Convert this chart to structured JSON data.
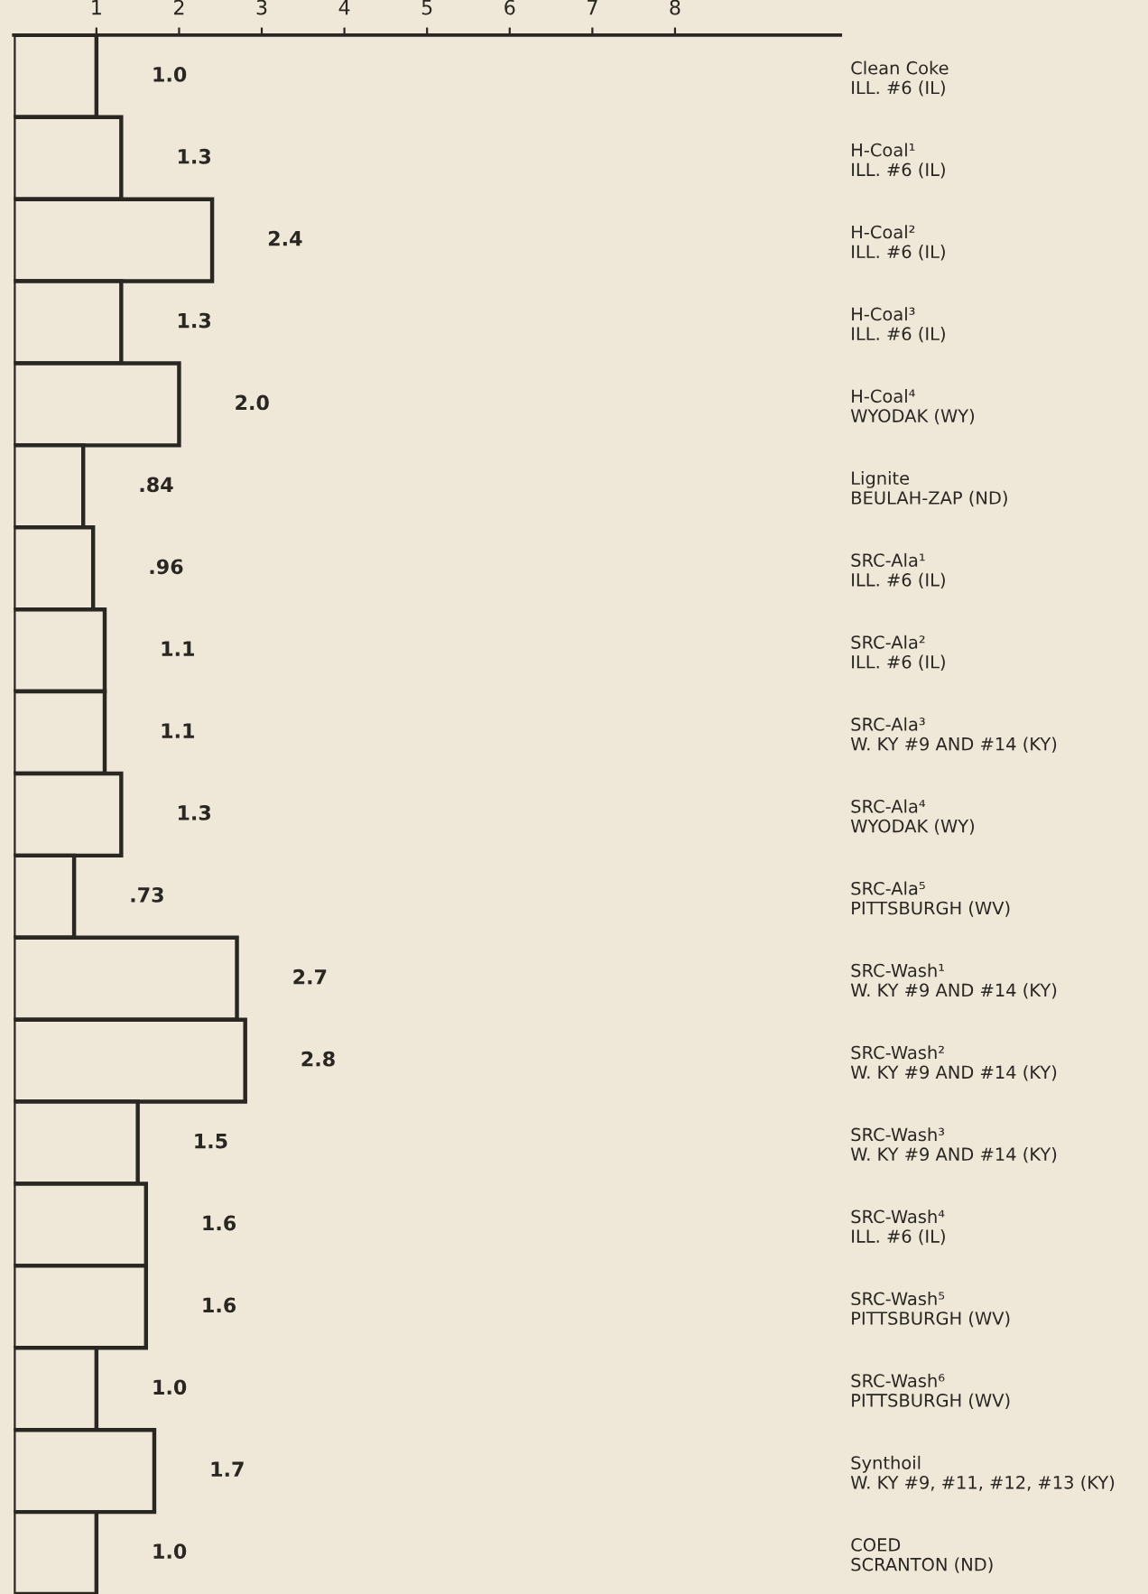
{
  "chart_data": {
    "type": "bar",
    "orientation": "horizontal",
    "categories": [
      "Clean Coke\nILL. #6 (IL)",
      "H-Coal¹\nILL. #6 (IL)",
      "H-Coal²\nILL. #6 (IL)",
      "H-Coal³\nILL. #6 (IL)",
      "H-Coal⁴\nWYODAK (WY)",
      "Lignite\nBEULAH-ZAP (ND)",
      "SRC-Ala¹\nILL. #6 (IL)",
      "SRC-Ala²\nILL. #6 (IL)",
      "SRC-Ala³\nW. KY #9 AND #14 (KY)",
      "SRC-Ala⁴\nWYODAK (WY)",
      "SRC-Ala⁵\nPITTSBURGH (WV)",
      "SRC-Wash¹\nW. KY #9 AND #14 (KY)",
      "SRC-Wash²\nW. KY #9 AND #14 (KY)",
      "SRC-Wash³\nW. KY #9 AND #14 (KY)",
      "SRC-Wash⁴\nILL. #6 (IL)",
      "SRC-Wash⁵\nPITTSBURGH (WV)",
      "SRC-Wash⁶\nPITTSBURGH (WV)",
      "Synthoil\nW. KY #9, #11, #12, #13 (KY)",
      "COED\nSCRANTON (ND)"
    ],
    "values": [
      1.0,
      1.3,
      2.4,
      1.3,
      2.0,
      0.84,
      0.96,
      1.1,
      1.1,
      1.3,
      0.73,
      2.7,
      2.8,
      1.5,
      1.6,
      1.6,
      1.0,
      1.7,
      1.0
    ],
    "value_labels": [
      "1.0",
      "1.3",
      "2.4",
      "1.3",
      "2.0",
      ".84",
      ".96",
      "1.1",
      "1.1",
      "1.3",
      ".73",
      "2.7",
      "2.8",
      "1.5",
      "1.6",
      "1.6",
      "1.0",
      "1.7",
      "1.0"
    ],
    "color": "#efe8d8",
    "xlim": [
      0,
      10
    ],
    "xticks": [
      1,
      2,
      3,
      4,
      5,
      6,
      7,
      8
    ],
    "grid": false,
    "legend": false
  }
}
